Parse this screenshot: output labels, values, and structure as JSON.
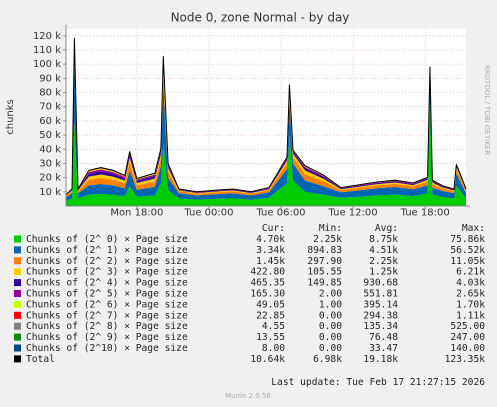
{
  "chart_data": {
    "type": "stacked-area",
    "title": "Node 0, zone Normal - by day",
    "y_label": "chunks",
    "side_note": "RRDTOOL / TOBI OETIKER",
    "last_update": "Last update: Tue Feb 17 21:27:15 2026",
    "footer": "Munin 2.0.56",
    "grid": true,
    "x": [
      12.1,
      12.6,
      12.8,
      13.1,
      14,
      15,
      16,
      17,
      17.4,
      18,
      19.5,
      20,
      20.2,
      20.6,
      21.5,
      23,
      24.5,
      26,
      27.5,
      29,
      30.5,
      30.7,
      31,
      32,
      33.5,
      35,
      36.5,
      38,
      39.5,
      41,
      42.2,
      42.4,
      42.6,
      43.5,
      44.4,
      44.6,
      45.4
    ],
    "xlim": [
      12.1,
      45.4
    ],
    "xticks": [
      {
        "value": 18,
        "label": "Mon 18:00"
      },
      {
        "value": 24,
        "label": "Tue 00:00"
      },
      {
        "value": 30,
        "label": "Tue 06:00"
      },
      {
        "value": 36,
        "label": "Tue 12:00"
      },
      {
        "value": 42,
        "label": "Tue 18:00"
      }
    ],
    "ylim": [
      0,
      125000
    ],
    "yticks": [
      {
        "value": 10000,
        "label": "10 k"
      },
      {
        "value": 20000,
        "label": "20 k"
      },
      {
        "value": 30000,
        "label": "30 k"
      },
      {
        "value": 40000,
        "label": "40 k"
      },
      {
        "value": 50000,
        "label": "50 k"
      },
      {
        "value": 60000,
        "label": "60 k"
      },
      {
        "value": 70000,
        "label": "70 k"
      },
      {
        "value": 80000,
        "label": "80 k"
      },
      {
        "value": 90000,
        "label": "90 k"
      },
      {
        "value": 100000,
        "label": "100 k"
      },
      {
        "value": 110000,
        "label": "110 k"
      },
      {
        "value": 120000,
        "label": "120 k"
      }
    ],
    "stats_headers": [
      "Cur:",
      "Min:",
      "Avg:",
      "Max:"
    ],
    "series": [
      {
        "name": "Chunks of (2^ 0) × Page size",
        "color": "#00cc00",
        "kind": "area",
        "stats": [
          "4.70k",
          "2.25k",
          "8.75k",
          "75.86k"
        ],
        "values": [
          3600,
          5400,
          60000,
          5400,
          8000,
          8500,
          8000,
          7000,
          14000,
          6500,
          7500,
          16000,
          45000,
          11000,
          5400,
          4500,
          5000,
          5400,
          4500,
          5800,
          16000,
          50000,
          18000,
          10000,
          8000,
          5800,
          6500,
          7500,
          8000,
          7000,
          9000,
          75000,
          8000,
          6300,
          5400,
          14000,
          5400
        ]
      },
      {
        "name": "Chunks of (2^ 1) × Page size",
        "color": "#0066b3",
        "kind": "area",
        "stats": [
          "3.34k",
          "894.83",
          "4.51k",
          "56.52k"
        ],
        "values": [
          2400,
          3600,
          45000,
          3600,
          6500,
          7000,
          6500,
          5500,
          11000,
          5000,
          6000,
          12000,
          40000,
          9000,
          3600,
          3000,
          3300,
          3600,
          3000,
          3900,
          10000,
          25000,
          12000,
          8000,
          6000,
          3900,
          4500,
          5000,
          5400,
          4800,
          5500,
          17000,
          5000,
          4200,
          3600,
          9000,
          3600
        ]
      },
      {
        "name": "Chunks of (2^ 2) × Page size",
        "color": "#ff8000",
        "kind": "area",
        "stats": [
          "1.45k",
          "297.90",
          "2.25k",
          "11.05k"
        ],
        "values": [
          1000,
          1400,
          8000,
          1400,
          4000,
          4300,
          4000,
          3500,
          6000,
          3000,
          3800,
          5500,
          10000,
          4500,
          1400,
          1200,
          1300,
          1400,
          1200,
          1500,
          4000,
          5500,
          4500,
          4500,
          3500,
          1500,
          1800,
          2000,
          2200,
          2000,
          2700,
          3000,
          2500,
          1700,
          1400,
          3000,
          1400
        ]
      },
      {
        "name": "Chunks of (2^ 3) × Page size",
        "color": "#ffcc00",
        "kind": "area",
        "stats": [
          "422.80",
          "105.55",
          "1.25k",
          "6.21k"
        ],
        "values": [
          400,
          600,
          3000,
          600,
          2200,
          2400,
          2200,
          1900,
          3000,
          1700,
          2000,
          2800,
          5000,
          2300,
          600,
          500,
          550,
          600,
          500,
          650,
          2000,
          2500,
          2300,
          2500,
          1900,
          650,
          800,
          900,
          1000,
          900,
          1200,
          1300,
          1100,
          700,
          600,
          1500,
          600
        ]
      },
      {
        "name": "Chunks of (2^ 4) × Page size",
        "color": "#330099",
        "kind": "area",
        "stats": [
          "465.35",
          "149.85",
          "930.68",
          "4.03k"
        ],
        "values": [
          300,
          480,
          1500,
          480,
          2000,
          2200,
          2000,
          1700,
          2200,
          1500,
          1800,
          2000,
          3000,
          1500,
          480,
          400,
          440,
          480,
          400,
          520,
          1300,
          1400,
          1300,
          1700,
          1300,
          520,
          640,
          700,
          800,
          700,
          900,
          900,
          800,
          560,
          480,
          1000,
          480
        ]
      },
      {
        "name": "Chunks of (2^ 5) × Page size",
        "color": "#990099",
        "kind": "area",
        "stats": [
          "165.30",
          "2.00",
          "551.81",
          "2.65k"
        ],
        "values": [
          200,
          300,
          500,
          300,
          1300,
          1400,
          1300,
          1000,
          1200,
          900,
          1100,
          1100,
          1500,
          800,
          300,
          250,
          270,
          300,
          250,
          330,
          600,
          600,
          600,
          900,
          700,
          330,
          400,
          450,
          500,
          450,
          500,
          500,
          450,
          350,
          300,
          500,
          300
        ]
      },
      {
        "name": "Chunks of (2^ 6) × Page size",
        "color": "#ccff00",
        "kind": "area",
        "stats": [
          "49.05",
          "1.00",
          "395.14",
          "1.70k"
        ],
        "values": [
          80,
          120,
          200,
          120,
          600,
          650,
          600,
          450,
          500,
          400,
          500,
          450,
          500,
          300,
          120,
          100,
          110,
          120,
          100,
          130,
          250,
          250,
          250,
          400,
          300,
          130,
          160,
          180,
          200,
          180,
          200,
          200,
          180,
          140,
          120,
          200,
          120
        ]
      },
      {
        "name": "Chunks of (2^ 7) × Page size",
        "color": "#ff0000",
        "kind": "area",
        "stats": [
          "22.85",
          "0.00",
          "294.38",
          "1.11k"
        ],
        "values": [
          30,
          50,
          100,
          50,
          300,
          330,
          300,
          220,
          250,
          200,
          250,
          220,
          250,
          150,
          50,
          40,
          45,
          50,
          40,
          55,
          120,
          120,
          120,
          200,
          150,
          55,
          65,
          75,
          80,
          75,
          80,
          80,
          75,
          60,
          50,
          80,
          50
        ]
      },
      {
        "name": "Chunks of (2^ 8) × Page size",
        "color": "#808080",
        "kind": "area",
        "stats": [
          "4.55",
          "0.00",
          "135.34",
          "525.00"
        ],
        "values": [
          15,
          25,
          60,
          25,
          150,
          160,
          150,
          110,
          130,
          100,
          120,
          110,
          130,
          80,
          25,
          20,
          22,
          25,
          20,
          28,
          60,
          60,
          60,
          100,
          80,
          28,
          33,
          38,
          40,
          38,
          40,
          40,
          38,
          30,
          25,
          40,
          25
        ]
      },
      {
        "name": "Chunks of (2^ 9) × Page size",
        "color": "#008f00",
        "kind": "area",
        "stats": [
          "13.55",
          "0.00",
          "76.48",
          "247.00"
        ],
        "values": [
          15,
          25,
          150,
          25,
          100,
          110,
          100,
          80,
          100,
          70,
          90,
          100,
          200,
          80,
          25,
          20,
          22,
          25,
          20,
          28,
          80,
          150,
          80,
          90,
          70,
          28,
          33,
          38,
          40,
          38,
          40,
          100,
          38,
          30,
          25,
          60,
          25
        ]
      },
      {
        "name": "Chunks of (2^10) × Page size",
        "color": "#00487d",
        "kind": "area",
        "stats": [
          "8.00",
          "0.00",
          "33.47",
          "140.00"
        ],
        "values": [
          10,
          15,
          80,
          15,
          50,
          55,
          50,
          40,
          50,
          35,
          45,
          50,
          100,
          40,
          15,
          10,
          11,
          15,
          10,
          14,
          40,
          80,
          40,
          45,
          35,
          14,
          16,
          19,
          20,
          19,
          20,
          50,
          19,
          15,
          12,
          30,
          15
        ]
      },
      {
        "name": "Total",
        "color": "#000000",
        "kind": "line",
        "stats": [
          "10.64k",
          "6.98k",
          "19.18k",
          "123.35k"
        ],
        "values": [
          8050,
          12015,
          118590,
          12015,
          25200,
          27105,
          25200,
          21500,
          38430,
          19405,
          23205,
          40330,
          105680,
          29750,
          12015,
          10040,
          11070,
          12015,
          10040,
          12955,
          34450,
          85660,
          39250,
          28435,
          22035,
          12955,
          14947,
          16900,
          18280,
          16200,
          20180,
          98170,
          18200,
          14085,
          12012,
          29410,
          12015
        ]
      }
    ]
  }
}
